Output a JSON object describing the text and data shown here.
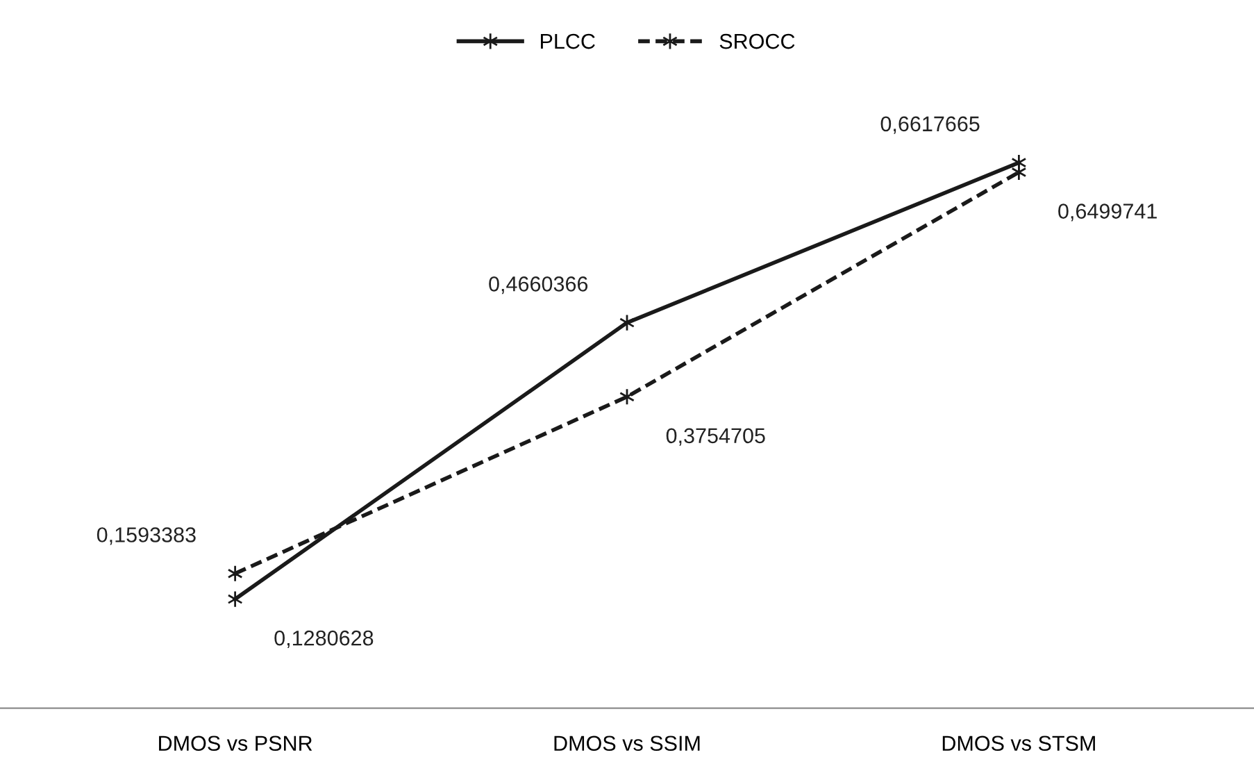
{
  "chart_data": {
    "type": "line",
    "categories": [
      "DMOS vs PSNR",
      "DMOS vs SSIM",
      "DMOS vs STSM"
    ],
    "series": [
      {
        "name": "PLCC",
        "color": "#1a1a1a",
        "line_style": "solid",
        "values": [
          0.1280628,
          0.4660366,
          0.6617665
        ],
        "value_labels": [
          "0,1280628",
          "0,4660366",
          "0,6617665"
        ]
      },
      {
        "name": "SROCC",
        "color": "#1a1a1a",
        "line_style": "dashed",
        "values": [
          0.1593383,
          0.3754705,
          0.6499741
        ],
        "value_labels": [
          "0,1593383",
          "0,3754705",
          "0,6499741"
        ]
      }
    ],
    "tick_labels": "x",
    "marker": "cross",
    "legend": "top",
    "grid": false
  }
}
